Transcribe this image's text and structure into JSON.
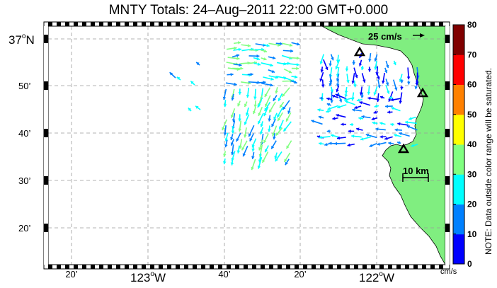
{
  "title": "MNTY Totals: 24–Aug–2011 22:00 GMT+0.000",
  "lat_labels": [
    {
      "text": "37",
      "sup": "o",
      "suffix": "N",
      "lat": 37.0
    },
    {
      "text": "50’",
      "lat": 36.8333
    },
    {
      "text": "40’",
      "lat": 36.6667
    },
    {
      "text": "30’",
      "lat": 36.5
    },
    {
      "text": "20’",
      "lat": 36.3333
    }
  ],
  "lon_labels": [
    {
      "text": "20’",
      "lon": -123.3333
    },
    {
      "text": "123",
      "sup": "o",
      "suffix": "W",
      "lon": -123.0
    },
    {
      "text": "40’",
      "lon": -122.6667
    },
    {
      "text": "20’",
      "lon": -122.3333
    },
    {
      "text": "122",
      "sup": "o",
      "suffix": "W",
      "lon": -122.0
    }
  ],
  "reference_vector_label": "25 cm/s",
  "scale_bar_label": "10 km",
  "colorbar": {
    "ticks": [
      "0",
      "10",
      "20",
      "30",
      "40",
      "50",
      "60",
      "70",
      "80"
    ],
    "colors": [
      "#0000ff",
      "#0080ff",
      "#00ffff",
      "#80ff80",
      "#ffff00",
      "#ff8000",
      "#ff0000",
      "#800000"
    ],
    "units": "cm/s",
    "note": "NOTE: Data outside color range will be saturated."
  },
  "sites": [
    "site-north",
    "site-east",
    "site-south"
  ],
  "land_color": "#80ee80"
}
